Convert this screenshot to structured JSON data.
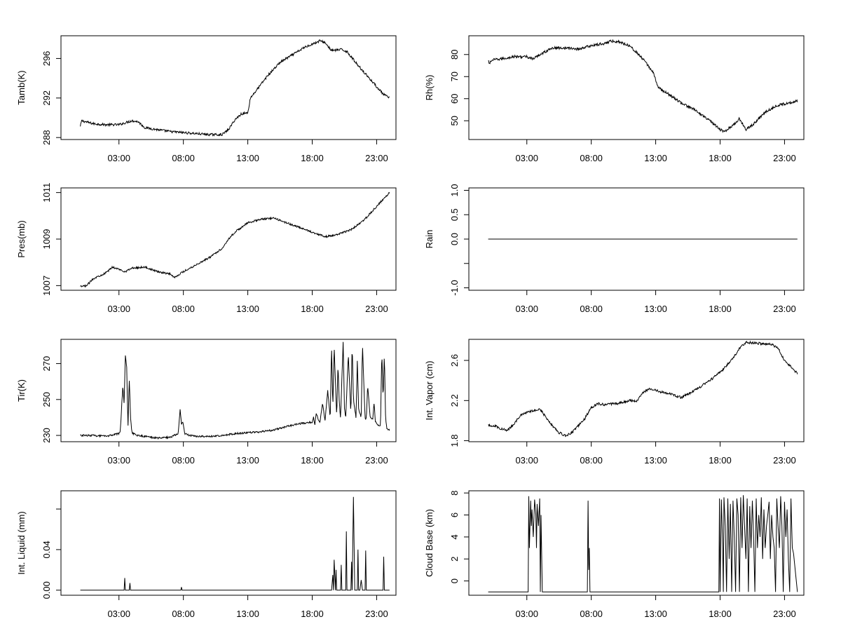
{
  "chart_data": [
    {
      "type": "line",
      "ylabel": "Tamb(K)",
      "xlim": [
        -1.5,
        24.5
      ],
      "ylim": [
        287.8,
        298.3
      ],
      "xticks": [
        {
          "v": 3,
          "label": "03:00"
        },
        {
          "v": 8,
          "label": "08:00"
        },
        {
          "v": 13,
          "label": "13:00"
        },
        {
          "v": 18,
          "label": "18:00"
        },
        {
          "v": 23,
          "label": "23:00"
        }
      ],
      "yticks": [
        {
          "v": 288,
          "label": "288"
        },
        {
          "v": 292,
          "label": "292"
        },
        {
          "v": 296,
          "label": "296"
        }
      ],
      "x": [
        0,
        0.1,
        1,
        2,
        3,
        4,
        4.5,
        5,
        6,
        7,
        8,
        9,
        10,
        11,
        11.5,
        12,
        12.5,
        13,
        13.2,
        13.8,
        14.5,
        15.5,
        16.5,
        17.5,
        18.3,
        18.6,
        19,
        19.5,
        20.3,
        20.7,
        21.5,
        22.5,
        23.5,
        24
      ],
      "y": [
        289.1,
        289.7,
        289.4,
        289.3,
        289.3,
        289.7,
        289.6,
        289.0,
        288.8,
        288.6,
        288.5,
        288.4,
        288.3,
        288.3,
        288.8,
        289.8,
        290.4,
        290.5,
        292.0,
        293.0,
        294.2,
        295.6,
        296.4,
        297.2,
        297.6,
        297.8,
        297.6,
        296.8,
        296.9,
        296.7,
        295.4,
        293.9,
        292.4,
        292.0
      ],
      "noise": 0.12
    },
    {
      "type": "line",
      "ylabel": "Rh(%)",
      "xlim": [
        -1.5,
        24.5
      ],
      "ylim": [
        41.5,
        88.5
      ],
      "xticks": [
        {
          "v": 3,
          "label": "03:00"
        },
        {
          "v": 8,
          "label": "08:00"
        },
        {
          "v": 13,
          "label": "13:00"
        },
        {
          "v": 18,
          "label": "18:00"
        },
        {
          "v": 23,
          "label": "23:00"
        }
      ],
      "yticks": [
        {
          "v": 50,
          "label": "50"
        },
        {
          "v": 60,
          "label": "60"
        },
        {
          "v": 70,
          "label": "70"
        },
        {
          "v": 80,
          "label": "80"
        }
      ],
      "x": [
        0,
        0.1,
        0.3,
        1,
        2,
        3,
        3.5,
        4,
        5,
        6,
        7,
        8,
        9,
        9.5,
        10,
        11,
        12,
        12.8,
        13.2,
        14,
        15,
        16,
        17,
        18,
        18.3,
        19,
        19.5,
        20,
        20.5,
        21.5,
        22.5,
        24
      ],
      "y": [
        77,
        76,
        77.5,
        78,
        79,
        79,
        78,
        80,
        83,
        83,
        82.5,
        84,
        85,
        86,
        86,
        84,
        78,
        72,
        65,
        62,
        58,
        55,
        51,
        46,
        45,
        48,
        51,
        46,
        48,
        54,
        57,
        59
      ],
      "noise": 0.6
    },
    {
      "type": "line",
      "ylabel": "Pres(mb)",
      "xlim": [
        -1.5,
        24.5
      ],
      "ylim": [
        1006.8,
        1011.2
      ],
      "xticks": [
        {
          "v": 3,
          "label": "03:00"
        },
        {
          "v": 8,
          "label": "08:00"
        },
        {
          "v": 13,
          "label": "13:00"
        },
        {
          "v": 18,
          "label": "18:00"
        },
        {
          "v": 23,
          "label": "23:00"
        }
      ],
      "yticks": [
        {
          "v": 1007,
          "label": "1007"
        },
        {
          "v": 1009,
          "label": "1009"
        },
        {
          "v": 1011,
          "label": "1011"
        }
      ],
      "x": [
        0,
        0.5,
        1,
        2,
        2.5,
        3.5,
        4,
        5,
        6,
        7,
        7.3,
        8,
        9,
        10,
        11,
        11.5,
        12,
        13,
        14,
        15,
        16,
        17,
        18,
        19,
        19.5,
        20,
        21,
        22,
        23,
        24
      ],
      "y": [
        1006.95,
        1007.0,
        1007.3,
        1007.55,
        1007.8,
        1007.6,
        1007.75,
        1007.8,
        1007.6,
        1007.5,
        1007.35,
        1007.6,
        1007.9,
        1008.2,
        1008.6,
        1009.0,
        1009.3,
        1009.7,
        1009.85,
        1009.9,
        1009.7,
        1009.5,
        1009.3,
        1009.1,
        1009.15,
        1009.2,
        1009.4,
        1009.8,
        1010.4,
        1011.0
      ],
      "noise": 0.04
    },
    {
      "type": "line",
      "ylabel": "Rain",
      "xlim": [
        -1.5,
        24.5
      ],
      "ylim": [
        -1.05,
        1.05
      ],
      "xticks": [
        {
          "v": 3,
          "label": "03:00"
        },
        {
          "v": 8,
          "label": "08:00"
        },
        {
          "v": 13,
          "label": "13:00"
        },
        {
          "v": 18,
          "label": "18:00"
        },
        {
          "v": 23,
          "label": "23:00"
        }
      ],
      "yticks": [
        {
          "v": -1,
          "label": "-1.0"
        },
        {
          "v": -0.5,
          "label": ""
        },
        {
          "v": 0,
          "label": "0.0"
        },
        {
          "v": 0.5,
          "label": "0.5"
        },
        {
          "v": 1,
          "label": "1.0"
        }
      ],
      "x": [
        0,
        24
      ],
      "y": [
        0,
        0
      ],
      "noise": 0
    },
    {
      "type": "line",
      "ylabel": "Tir(K)",
      "xlim": [
        -1.5,
        24.5
      ],
      "ylim": [
        226.5,
        283.5
      ],
      "xticks": [
        {
          "v": 3,
          "label": "03:00"
        },
        {
          "v": 8,
          "label": "08:00"
        },
        {
          "v": 13,
          "label": "13:00"
        },
        {
          "v": 18,
          "label": "18:00"
        },
        {
          "v": 23,
          "label": "23:00"
        }
      ],
      "yticks": [
        {
          "v": 230,
          "label": "230"
        },
        {
          "v": 250,
          "label": "250"
        },
        {
          "v": 270,
          "label": "270"
        }
      ],
      "x": [
        0,
        1,
        2,
        3,
        3.1,
        3.2,
        3.3,
        3.4,
        3.5,
        3.6,
        3.7,
        3.8,
        3.9,
        4.0,
        4.1,
        4.2,
        4.3,
        4.5,
        5,
        6,
        7,
        7.6,
        7.75,
        7.85,
        7.95,
        8.1,
        8.5,
        9,
        10,
        11,
        11.5,
        12,
        13,
        14,
        15,
        16,
        17,
        18,
        18.1,
        18.2,
        18.3,
        18.6,
        18.8,
        19,
        19.2,
        19.4,
        19.5,
        19.6,
        19.7,
        19.9,
        20.0,
        20.1,
        20.2,
        20.4,
        20.5,
        20.6,
        20.8,
        21.0,
        21.1,
        21.2,
        21.4,
        21.5,
        21.6,
        21.8,
        21.9,
        22.0,
        22.1,
        22.2,
        22.3,
        22.5,
        22.7,
        22.8,
        22.9,
        23.1,
        23.3,
        23.4,
        23.5,
        23.6,
        23.7,
        23.8,
        24
      ],
      "y": [
        230,
        230,
        229.5,
        231,
        232,
        245,
        258,
        248,
        275,
        268,
        235,
        262,
        240,
        232,
        231,
        231,
        230,
        230,
        229.5,
        228.5,
        229,
        231,
        245,
        236,
        238,
        231,
        230,
        229.5,
        229.3,
        230,
        230.5,
        231,
        231.5,
        232,
        233,
        235,
        236.5,
        237.5,
        240,
        236,
        242,
        237,
        248,
        238,
        255,
        240,
        280,
        245,
        280,
        240,
        270,
        248,
        240,
        282,
        245,
        240,
        275,
        242,
        281,
        250,
        240,
        272,
        245,
        240,
        280,
        260,
        240,
        239,
        258,
        240,
        239,
        248,
        238,
        236,
        235,
        277,
        250,
        276,
        238,
        234,
        233
      ],
      "noise": 0.5
    },
    {
      "type": "line",
      "ylabel": "Int. Vapor (cm)",
      "xlim": [
        -1.5,
        24.5
      ],
      "ylim": [
        1.79,
        2.81
      ],
      "xticks": [
        {
          "v": 3,
          "label": "03:00"
        },
        {
          "v": 8,
          "label": "08:00"
        },
        {
          "v": 13,
          "label": "13:00"
        },
        {
          "v": 18,
          "label": "18:00"
        },
        {
          "v": 23,
          "label": "23:00"
        }
      ],
      "yticks": [
        {
          "v": 1.8,
          "label": "1.8"
        },
        {
          "v": 2.2,
          "label": "2.2"
        },
        {
          "v": 2.6,
          "label": "2.6"
        }
      ],
      "x": [
        0,
        0.5,
        1,
        1.5,
        2,
        2.5,
        3,
        3.5,
        4,
        4.5,
        5,
        5.5,
        6,
        6.5,
        7,
        7.5,
        8,
        8.5,
        9,
        10,
        11,
        11.5,
        12,
        12.5,
        13,
        14,
        15,
        16,
        17,
        18,
        19,
        19.5,
        20,
        21,
        22,
        22.5,
        23,
        24
      ],
      "y": [
        1.95,
        1.95,
        1.92,
        1.9,
        1.97,
        2.05,
        2.08,
        2.1,
        2.12,
        2.03,
        1.95,
        1.88,
        1.85,
        1.88,
        1.95,
        2.02,
        2.13,
        2.17,
        2.16,
        2.17,
        2.2,
        2.19,
        2.28,
        2.32,
        2.3,
        2.27,
        2.23,
        2.3,
        2.38,
        2.48,
        2.62,
        2.72,
        2.78,
        2.77,
        2.76,
        2.72,
        2.6,
        2.47
      ],
      "noise": 0.012
    },
    {
      "type": "line",
      "ylabel": "Int. Liquid (mm)",
      "xlim": [
        -1.5,
        24.5
      ],
      "ylim": [
        -0.005,
        0.098
      ],
      "xticks": [
        {
          "v": 3,
          "label": "03:00"
        },
        {
          "v": 8,
          "label": "08:00"
        },
        {
          "v": 13,
          "label": "13:00"
        },
        {
          "v": 18,
          "label": "18:00"
        },
        {
          "v": 23,
          "label": "23:00"
        }
      ],
      "yticks": [
        {
          "v": 0,
          "label": "0.00"
        },
        {
          "v": 0.04,
          "label": "0.04"
        },
        {
          "v": 0.08,
          "label": ""
        }
      ],
      "x": [
        0,
        3.4,
        3.45,
        3.5,
        3.55,
        3.8,
        3.85,
        3.9,
        4.0,
        7.8,
        7.85,
        7.9,
        8.0,
        19.5,
        19.6,
        19.65,
        19.7,
        19.8,
        19.85,
        19.9,
        20.0,
        20.2,
        20.25,
        20.3,
        20.5,
        20.6,
        20.65,
        20.7,
        20.8,
        21.0,
        21.05,
        21.1,
        21.2,
        21.3,
        21.5,
        21.55,
        21.6,
        21.7,
        21.8,
        21.9,
        22.0,
        22.1,
        22.15,
        22.2,
        22.3,
        22.5,
        23.4,
        23.5,
        23.55,
        23.6,
        23.7,
        24
      ],
      "y": [
        0,
        0,
        0.012,
        0,
        0,
        0,
        0.007,
        0,
        0,
        0,
        0.003,
        0,
        0,
        0,
        0.015,
        0,
        0.03,
        0,
        0.02,
        0,
        0,
        0,
        0.025,
        0,
        0,
        0,
        0.058,
        0,
        0,
        0,
        0.028,
        0,
        0.092,
        0,
        0,
        0.04,
        0,
        0,
        0.01,
        0,
        0,
        0,
        0.039,
        0,
        0,
        0,
        0,
        0,
        0.033,
        0,
        0,
        0
      ],
      "noise": 0
    },
    {
      "type": "line",
      "ylabel": "Cloud Base (km)",
      "xlim": [
        -1.5,
        24.5
      ],
      "ylim": [
        -1.3,
        8.2
      ],
      "xticks": [
        {
          "v": 3,
          "label": "03:00"
        },
        {
          "v": 8,
          "label": "08:00"
        },
        {
          "v": 13,
          "label": "13:00"
        },
        {
          "v": 18,
          "label": "18:00"
        },
        {
          "v": 23,
          "label": "23:00"
        }
      ],
      "yticks": [
        {
          "v": 0,
          "label": "0"
        },
        {
          "v": 2,
          "label": "2"
        },
        {
          "v": 4,
          "label": "4"
        },
        {
          "v": 6,
          "label": "6"
        },
        {
          "v": 8,
          "label": "8"
        }
      ],
      "x": [
        0,
        3.1,
        3.15,
        3.2,
        3.3,
        3.35,
        3.4,
        3.5,
        3.6,
        3.7,
        3.75,
        3.8,
        3.9,
        4.0,
        4.05,
        4.1,
        4.2,
        4.3,
        7.7,
        7.75,
        7.8,
        7.85,
        7.9,
        17.9,
        17.95,
        18.0,
        18.1,
        18.2,
        18.25,
        18.3,
        18.4,
        18.5,
        18.6,
        18.7,
        18.8,
        18.9,
        19.0,
        19.1,
        19.2,
        19.3,
        19.4,
        19.5,
        19.6,
        19.7,
        19.8,
        19.9,
        20.0,
        20.1,
        20.2,
        20.3,
        20.4,
        20.5,
        20.6,
        20.7,
        20.8,
        20.9,
        21.0,
        21.1,
        21.2,
        21.3,
        21.4,
        21.5,
        21.6,
        21.7,
        21.8,
        21.9,
        22.0,
        22.1,
        22.2,
        22.3,
        22.4,
        22.5,
        22.6,
        22.7,
        22.8,
        22.9,
        23.0,
        23.1,
        23.2,
        23.3,
        23.4,
        23.5,
        23.6,
        23.7,
        24
      ],
      "y": [
        -1,
        -1,
        7.7,
        3,
        7.3,
        5,
        6.5,
        4,
        7.4,
        6,
        3,
        7,
        5,
        7.5,
        -1,
        6,
        -1,
        -1,
        -1,
        7.3,
        1,
        3,
        -1,
        -1,
        7.5,
        -1,
        7.4,
        3,
        -1,
        7.6,
        5,
        -1,
        7.5,
        2,
        7,
        -1,
        7.3,
        4,
        -1,
        7.5,
        6,
        -1,
        7.6,
        3,
        7.8,
        5,
        2,
        7.5,
        -1,
        6.8,
        3,
        7.3,
        4,
        -1,
        7.5,
        3,
        6,
        4,
        7.6,
        2,
        6.5,
        3,
        5,
        6,
        7.2,
        2,
        6,
        4,
        3,
        -1,
        7.5,
        5,
        3,
        7.7,
        5,
        -1,
        7.2,
        4,
        6.5,
        2,
        -1,
        7.5,
        3,
        2.5,
        -1
      ],
      "noise": 0
    }
  ]
}
